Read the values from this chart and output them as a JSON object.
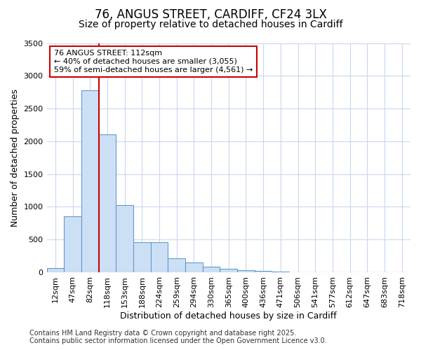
{
  "title_line1": "76, ANGUS STREET, CARDIFF, CF24 3LX",
  "title_line2": "Size of property relative to detached houses in Cardiff",
  "xlabel": "Distribution of detached houses by size in Cardiff",
  "ylabel": "Number of detached properties",
  "categories": [
    "12sqm",
    "47sqm",
    "82sqm",
    "118sqm",
    "153sqm",
    "188sqm",
    "224sqm",
    "259sqm",
    "294sqm",
    "330sqm",
    "365sqm",
    "400sqm",
    "436sqm",
    "471sqm",
    "506sqm",
    "541sqm",
    "577sqm",
    "612sqm",
    "647sqm",
    "683sqm",
    "718sqm"
  ],
  "values": [
    65,
    850,
    2780,
    2100,
    1030,
    460,
    460,
    215,
    145,
    80,
    55,
    30,
    20,
    8,
    4,
    2,
    1,
    1,
    0,
    0,
    0
  ],
  "bar_color": "#cce0f5",
  "bar_edge_color": "#6699cc",
  "vline_x_index": 3,
  "vline_color": "#cc0000",
  "annotation_title": "76 ANGUS STREET: 112sqm",
  "annotation_line2": "← 40% of detached houses are smaller (3,055)",
  "annotation_line3": "59% of semi-detached houses are larger (4,561) →",
  "annotation_box_color": "#cc0000",
  "annotation_bg": "#ffffff",
  "ylim": [
    0,
    3500
  ],
  "yticks": [
    0,
    500,
    1000,
    1500,
    2000,
    2500,
    3000,
    3500
  ],
  "footer_line1": "Contains HM Land Registry data © Crown copyright and database right 2025.",
  "footer_line2": "Contains public sector information licensed under the Open Government Licence v3.0.",
  "bg_color": "#ffffff",
  "plot_bg_color": "#ffffff",
  "grid_color": "#c8d8ee",
  "title_fontsize": 12,
  "subtitle_fontsize": 10,
  "axis_label_fontsize": 9,
  "tick_fontsize": 8,
  "annotation_fontsize": 8,
  "footer_fontsize": 7
}
